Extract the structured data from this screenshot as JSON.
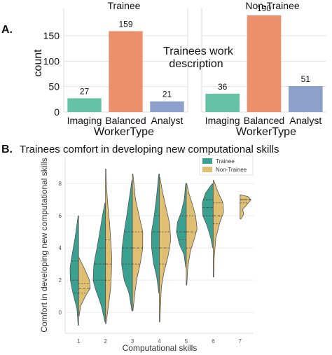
{
  "panel_a": {
    "label": "A.",
    "center_text_line1": "Trainees work",
    "center_text_line2": "description"
  },
  "panel_b": {
    "label": "B.",
    "title": "Trainees comfort in developing new computational skills"
  },
  "colors": {
    "imaging": "#66c2a5",
    "balanced": "#ec906b",
    "analyst": "#8da0cb",
    "trainee": "#3aa08f",
    "non_trainee": "#e0bf72",
    "grid": "#e3e3e3"
  },
  "chart_data": [
    {
      "type": "bar",
      "title": "Trainee",
      "categories": [
        "Imaging",
        "Balanced",
        "Analyst"
      ],
      "values": [
        27,
        159,
        21
      ],
      "xlabel": "WorkerType",
      "ylabel": "count",
      "ylim": [
        0,
        190
      ],
      "yticks": [
        0,
        50,
        100,
        150
      ],
      "grid": true
    },
    {
      "type": "bar",
      "title": "Non-Trainee",
      "categories": [
        "Imaging",
        "Balanced",
        "Analyst"
      ],
      "values": [
        36,
        190,
        51
      ],
      "xlabel": "WorkerType",
      "ylabel": "",
      "ylim": [
        0,
        190
      ],
      "grid": true
    },
    {
      "type": "violin",
      "xlabel": "Computational skills",
      "ylabel": "Comfort in developing new computational skills",
      "categories": [
        "1",
        "2",
        "3",
        "4",
        "5",
        "6",
        "7"
      ],
      "yticks": [
        0,
        2,
        4,
        6,
        8
      ],
      "ylim": [
        -1.3,
        9.4
      ],
      "legend_position": "top-right",
      "series": [
        {
          "name": "Trainee",
          "violins": [
            {
              "min": -0.8,
              "max": 6.0,
              "width": 0.33,
              "shape": [
                [
                  -0.8,
                  0.02
                ],
                [
                  0.2,
                  0.06
                ],
                [
                  1.2,
                  0.22
                ],
                [
                  2.0,
                  0.32
                ],
                [
                  2.8,
                  0.33
                ],
                [
                  3.6,
                  0.25
                ],
                [
                  4.6,
                  0.14
                ],
                [
                  5.4,
                  0.07
                ],
                [
                  6.0,
                  0.02
                ]
              ],
              "quartiles": [
                1.2,
                2.0,
                3.2
              ]
            },
            {
              "min": -0.6,
              "max": 6.8,
              "width": 0.48,
              "shape": [
                [
                  -0.6,
                  0.02
                ],
                [
                  0.4,
                  0.16
                ],
                [
                  1.5,
                  0.4
                ],
                [
                  2.0,
                  0.48
                ],
                [
                  3.0,
                  0.45
                ],
                [
                  4.0,
                  0.33
                ],
                [
                  5.0,
                  0.22
                ],
                [
                  6.0,
                  0.12
                ],
                [
                  6.8,
                  0.02
                ]
              ],
              "quartiles": [
                2.0,
                3.0,
                4.0
              ]
            },
            {
              "min": 0.1,
              "max": 8.2,
              "width": 0.42,
              "shape": [
                [
                  0.1,
                  0.02
                ],
                [
                  1.2,
                  0.13
                ],
                [
                  2.0,
                  0.32
                ],
                [
                  3.0,
                  0.42
                ],
                [
                  4.0,
                  0.4
                ],
                [
                  5.0,
                  0.32
                ],
                [
                  6.0,
                  0.22
                ],
                [
                  7.0,
                  0.13
                ],
                [
                  8.2,
                  0.02
                ]
              ],
              "quartiles": [
                3.0,
                4.0,
                5.0
              ]
            },
            {
              "min": 1.2,
              "max": 8.6,
              "width": 0.3,
              "shape": [
                [
                  1.2,
                  0.02
                ],
                [
                  2.2,
                  0.1
                ],
                [
                  3.0,
                  0.22
                ],
                [
                  4.0,
                  0.3
                ],
                [
                  5.0,
                  0.3
                ],
                [
                  6.0,
                  0.2
                ],
                [
                  7.0,
                  0.12
                ],
                [
                  8.6,
                  0.02
                ]
              ],
              "quartiles": [
                4.0,
                5.0,
                6.0
              ]
            },
            {
              "min": 2.8,
              "max": 8.0,
              "width": 0.38,
              "shape": [
                [
                  2.8,
                  0.02
                ],
                [
                  3.6,
                  0.09
                ],
                [
                  4.2,
                  0.26
                ],
                [
                  5.0,
                  0.38
                ],
                [
                  5.6,
                  0.34
                ],
                [
                  6.2,
                  0.2
                ],
                [
                  7.0,
                  0.08
                ],
                [
                  8.0,
                  0.02
                ]
              ],
              "quartiles": [
                4.5,
                5.0,
                6.0
              ]
            },
            {
              "min": 4.0,
              "max": 8.0,
              "width": 0.42,
              "shape": [
                [
                  4.0,
                  0.02
                ],
                [
                  4.6,
                  0.09
                ],
                [
                  5.4,
                  0.24
                ],
                [
                  6.0,
                  0.4
                ],
                [
                  6.8,
                  0.42
                ],
                [
                  7.4,
                  0.3
                ],
                [
                  8.0,
                  0.04
                ]
              ],
              "quartiles": [
                6.0,
                6.5,
                7.0
              ]
            }
          ]
        },
        {
          "name": "Non-Trainee",
          "violins": [
            {
              "min": -0.2,
              "max": 3.4,
              "width": 0.45,
              "shape": [
                [
                  -0.2,
                  0.02
                ],
                [
                  0.4,
                  0.08
                ],
                [
                  1.0,
                  0.26
                ],
                [
                  1.5,
                  0.45
                ],
                [
                  2.0,
                  0.42
                ],
                [
                  2.6,
                  0.26
                ],
                [
                  3.4,
                  0.02
                ]
              ],
              "quartiles": [
                1.2,
                1.5,
                1.8
              ]
            },
            {
              "min": -0.7,
              "max": 8.9,
              "width": 0.24,
              "shape": [
                [
                  -0.7,
                  0.02
                ],
                [
                  0.5,
                  0.12
                ],
                [
                  1.5,
                  0.2
                ],
                [
                  2.5,
                  0.23
                ],
                [
                  3.5,
                  0.24
                ],
                [
                  4.5,
                  0.2
                ],
                [
                  5.5,
                  0.16
                ],
                [
                  6.5,
                  0.1
                ],
                [
                  7.5,
                  0.05
                ],
                [
                  8.9,
                  0.01
                ]
              ],
              "quartiles": [
                2.0,
                3.0,
                4.5
              ]
            },
            {
              "min": 0.1,
              "max": 8.6,
              "width": 0.4,
              "shape": [
                [
                  0.1,
                  0.02
                ],
                [
                  1.0,
                  0.08
                ],
                [
                  2.0,
                  0.16
                ],
                [
                  3.0,
                  0.3
                ],
                [
                  4.0,
                  0.4
                ],
                [
                  5.0,
                  0.4
                ],
                [
                  6.0,
                  0.26
                ],
                [
                  7.0,
                  0.12
                ],
                [
                  8.6,
                  0.02
                ]
              ],
              "quartiles": [
                3.0,
                4.0,
                5.0
              ]
            },
            {
              "min": -0.6,
              "max": 8.4,
              "width": 0.44,
              "shape": [
                [
                  -0.6,
                  0.02
                ],
                [
                  0.5,
                  0.05
                ],
                [
                  1.6,
                  0.08
                ],
                [
                  2.5,
                  0.18
                ],
                [
                  3.5,
                  0.34
                ],
                [
                  4.5,
                  0.44
                ],
                [
                  5.5,
                  0.4
                ],
                [
                  6.5,
                  0.26
                ],
                [
                  7.5,
                  0.12
                ],
                [
                  8.4,
                  0.02
                ]
              ],
              "quartiles": [
                3.0,
                4.0,
                5.0
              ]
            },
            {
              "min": 1.7,
              "max": 8.0,
              "width": 0.42,
              "shape": [
                [
                  1.7,
                  0.02
                ],
                [
                  2.8,
                  0.06
                ],
                [
                  3.8,
                  0.16
                ],
                [
                  4.6,
                  0.32
                ],
                [
                  5.2,
                  0.42
                ],
                [
                  6.0,
                  0.36
                ],
                [
                  6.8,
                  0.22
                ],
                [
                  7.4,
                  0.1
                ],
                [
                  8.0,
                  0.02
                ]
              ],
              "quartiles": [
                4.0,
                5.0,
                6.0
              ]
            },
            {
              "min": 2.2,
              "max": 8.2,
              "width": 0.4,
              "shape": [
                [
                  2.2,
                  0.02
                ],
                [
                  3.4,
                  0.04
                ],
                [
                  4.6,
                  0.1
                ],
                [
                  5.6,
                  0.26
                ],
                [
                  6.2,
                  0.4
                ],
                [
                  6.8,
                  0.38
                ],
                [
                  7.5,
                  0.18
                ],
                [
                  8.2,
                  0.02
                ]
              ],
              "quartiles": [
                5.5,
                6.0,
                6.8
              ]
            },
            {
              "min": 5.8,
              "max": 7.3,
              "width": 0.42,
              "shape": [
                [
                  5.8,
                  0.04
                ],
                [
                  6.1,
                  0.14
                ],
                [
                  6.4,
                  0.1
                ],
                [
                  6.8,
                  0.32
                ],
                [
                  7.0,
                  0.42
                ],
                [
                  7.2,
                  0.3
                ],
                [
                  7.3,
                  0.02
                ]
              ],
              "quartiles": [
                6.8,
                7.0,
                7.0
              ]
            }
          ]
        }
      ]
    }
  ]
}
